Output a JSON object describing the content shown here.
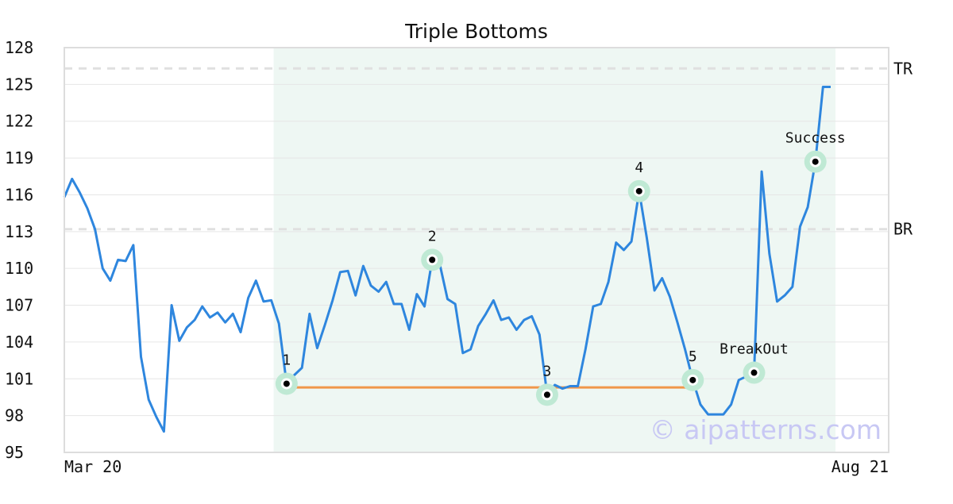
{
  "chart_data": {
    "type": "line",
    "title": "Triple Bottoms",
    "xlabel": "",
    "ylabel": "",
    "x_range_labels": [
      "Mar 20",
      "Aug 21"
    ],
    "y_ticks": [
      95,
      98,
      101,
      104,
      107,
      110,
      113,
      116,
      119,
      122,
      125,
      128
    ],
    "ylim": [
      95,
      128
    ],
    "grid": "horizontal",
    "series": [
      {
        "values": [
          115.8,
          117.3,
          116.2,
          114.9,
          113.2,
          110.0,
          109.0,
          110.7,
          110.6,
          111.9,
          102.8,
          99.3,
          97.9,
          96.7,
          107.0,
          104.1,
          105.2,
          105.8,
          106.9,
          106.0,
          106.4,
          105.6,
          106.3,
          104.8,
          107.6,
          109.0,
          107.3,
          107.4,
          105.5,
          100.6,
          101.3,
          101.9,
          106.3,
          103.5,
          105.4,
          107.4,
          109.7,
          109.8,
          107.8,
          110.2,
          108.6,
          108.1,
          108.9,
          107.1,
          107.1,
          105.0,
          107.9,
          106.9,
          110.7,
          110.3,
          107.5,
          107.1,
          103.1,
          103.4,
          105.3,
          106.3,
          107.4,
          105.8,
          106.0,
          105.0,
          105.8,
          106.1,
          104.6,
          99.7,
          100.5,
          100.2,
          100.4,
          100.4,
          103.4,
          106.9,
          107.1,
          108.9,
          112.1,
          111.5,
          112.2,
          116.3,
          112.5,
          108.2,
          109.2,
          107.7,
          105.6,
          103.4,
          100.9,
          98.9,
          98.1,
          98.1,
          98.1,
          98.9,
          100.9,
          101.2,
          101.5,
          117.9,
          111.2,
          107.3,
          107.8,
          108.5,
          113.4,
          115.0,
          118.7,
          124.8,
          124.8
        ]
      }
    ],
    "shaded_region": {
      "start_index": 27,
      "end_index": 100
    },
    "reference_lines": [
      {
        "label": "TR",
        "value": 126.3,
        "style": "dashed"
      },
      {
        "label": "BR",
        "value": 113.2,
        "style": "dashed"
      }
    ],
    "support_line": {
      "start_index": 29,
      "end_index": 82,
      "value": 100.3
    },
    "annotations": [
      {
        "label": "1",
        "index": 29,
        "value": 100.6
      },
      {
        "label": "2",
        "index": 48,
        "value": 110.7
      },
      {
        "label": "3",
        "index": 63,
        "value": 99.7
      },
      {
        "label": "4",
        "index": 75,
        "value": 116.3
      },
      {
        "label": "5",
        "index": 82,
        "value": 100.9
      },
      {
        "label": "BreakOut",
        "index": 90,
        "value": 101.5
      },
      {
        "label": "Success",
        "index": 98,
        "value": 118.7
      }
    ],
    "colors": {
      "line": "#2e86de",
      "support": "#f0974a",
      "shade": "#eef7f3",
      "marker_ring": "#bfe9d4",
      "grid": "#e6e6e6",
      "ref_line": "#e0e0e0",
      "frame": "#dddddd",
      "watermark": "#c8c8f4"
    },
    "watermark": "© aipatterns.com"
  }
}
